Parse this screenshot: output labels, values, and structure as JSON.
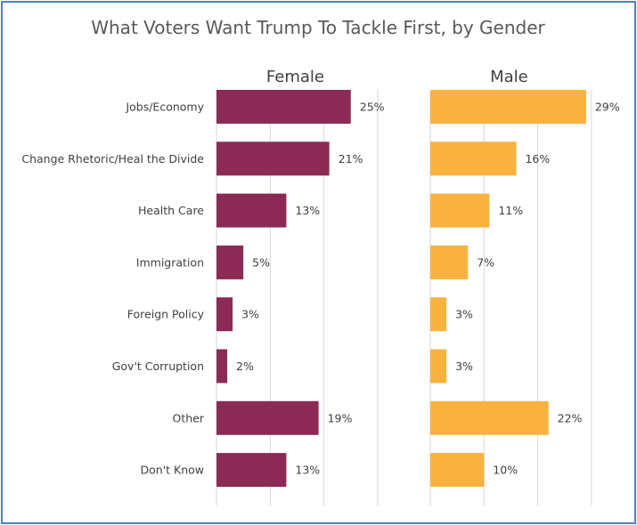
{
  "chart_data": {
    "type": "bar",
    "title": "What Voters Want Trump To Tackle First, by Gender",
    "categories": [
      "Jobs/Economy",
      "Change Rhetoric/Heal the Divide",
      "Health Care",
      "Immigration",
      "Foreign Policy",
      "Gov't Corruption",
      "Other",
      "Don't Know"
    ],
    "series": [
      {
        "name": "Female",
        "values": [
          25,
          21,
          13,
          5,
          3,
          2,
          19,
          13
        ],
        "color": "#8b2a54"
      },
      {
        "name": "Male",
        "values": [
          29,
          16,
          11,
          7,
          3,
          3,
          22,
          10
        ],
        "color": "#f9b13f"
      }
    ],
    "value_suffix": "%",
    "xlim": [
      0,
      30
    ],
    "grid": true,
    "orientation": "horizontal"
  },
  "colors": {
    "border": "#4f81bd",
    "text": "#404040",
    "gridline": "#d9d9d9"
  }
}
